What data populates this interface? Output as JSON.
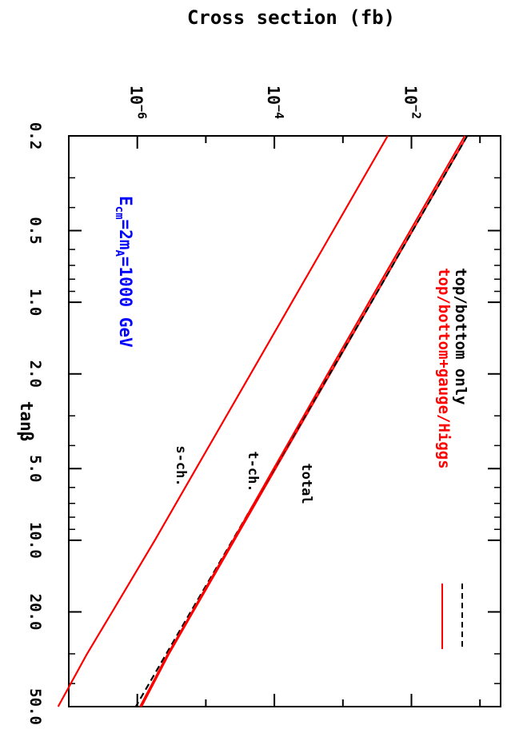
{
  "chart_data": {
    "type": "line",
    "orientation": "rotated 90° clockwise",
    "ylabel": "Cross section (fb)",
    "xlabel": "tanβ",
    "xscale": "log",
    "yscale": "log",
    "xlim": [
      0.2,
      50.0
    ],
    "ylim": [
      1e-07,
      0.2
    ],
    "x_ticks": [
      "0.2",
      "0.5",
      "1.0",
      "2.0",
      "5.0",
      "10.0",
      "20.0",
      "50.0"
    ],
    "y_ticks": [
      {
        "value": 1e-06,
        "base": "10",
        "exp": "−6"
      },
      {
        "value": 0.0001,
        "base": "10",
        "exp": "−4"
      },
      {
        "value": 0.01,
        "base": "10",
        "exp": "−2"
      }
    ],
    "legend": {
      "placement": "top-right",
      "entries": [
        {
          "label": "top/bottom only",
          "color": "#000000",
          "style": "dashed"
        },
        {
          "label": "top/bottom+gauge/Higgs",
          "color": "#ff0000",
          "style": "solid"
        }
      ]
    },
    "annotation": {
      "main": "E",
      "sub1": "cm",
      "mid": "=2m",
      "sub2": "A",
      "tail": "=1000 GeV",
      "color": "#0000ff"
    },
    "curve_labels": [
      "total",
      "t-ch.",
      "s-ch."
    ],
    "series": [
      {
        "name": "total",
        "color": "#ff0000",
        "style": "solid",
        "x": [
          0.2,
          0.5,
          1.0,
          2.0,
          5.0,
          10.0,
          20.0,
          30.0,
          50.0
        ],
        "y": [
          0.065,
          0.0104,
          0.0026,
          0.00065,
          0.000104,
          2.6e-05,
          6.5e-06,
          2.9e-06,
          1.15e-06
        ]
      },
      {
        "name": "total",
        "color": "#000000",
        "style": "dashed",
        "x": [
          0.2,
          0.5,
          1.0,
          2.0,
          5.0,
          10.0,
          20.0,
          30.0,
          50.0
        ],
        "y": [
          0.065,
          0.0104,
          0.0026,
          0.00064,
          0.0001,
          2.45e-05,
          6e-06,
          2.65e-06,
          9.5e-07
        ]
      },
      {
        "name": "t-ch.",
        "color": "#ff0000",
        "style": "solid",
        "x": [
          0.2,
          0.5,
          1.0,
          2.0,
          5.0,
          10.0,
          20.0,
          30.0,
          50.0
        ],
        "y": [
          0.06,
          0.0096,
          0.0024,
          0.0006,
          9.8e-05,
          2.5e-05,
          6.3e-06,
          2.8e-06,
          1.1e-06
        ]
      },
      {
        "name": "s-ch.",
        "color": "#ff0000",
        "style": "solid",
        "x": [
          0.2,
          0.5,
          1.0,
          2.0,
          5.0,
          10.0,
          20.0,
          30.0,
          50.0
        ],
        "y": [
          0.0045,
          0.00072,
          0.00018,
          4.5e-05,
          7.2e-06,
          1.8e-06,
          4.3e-07,
          1.85e-07,
          7e-08
        ]
      }
    ]
  }
}
